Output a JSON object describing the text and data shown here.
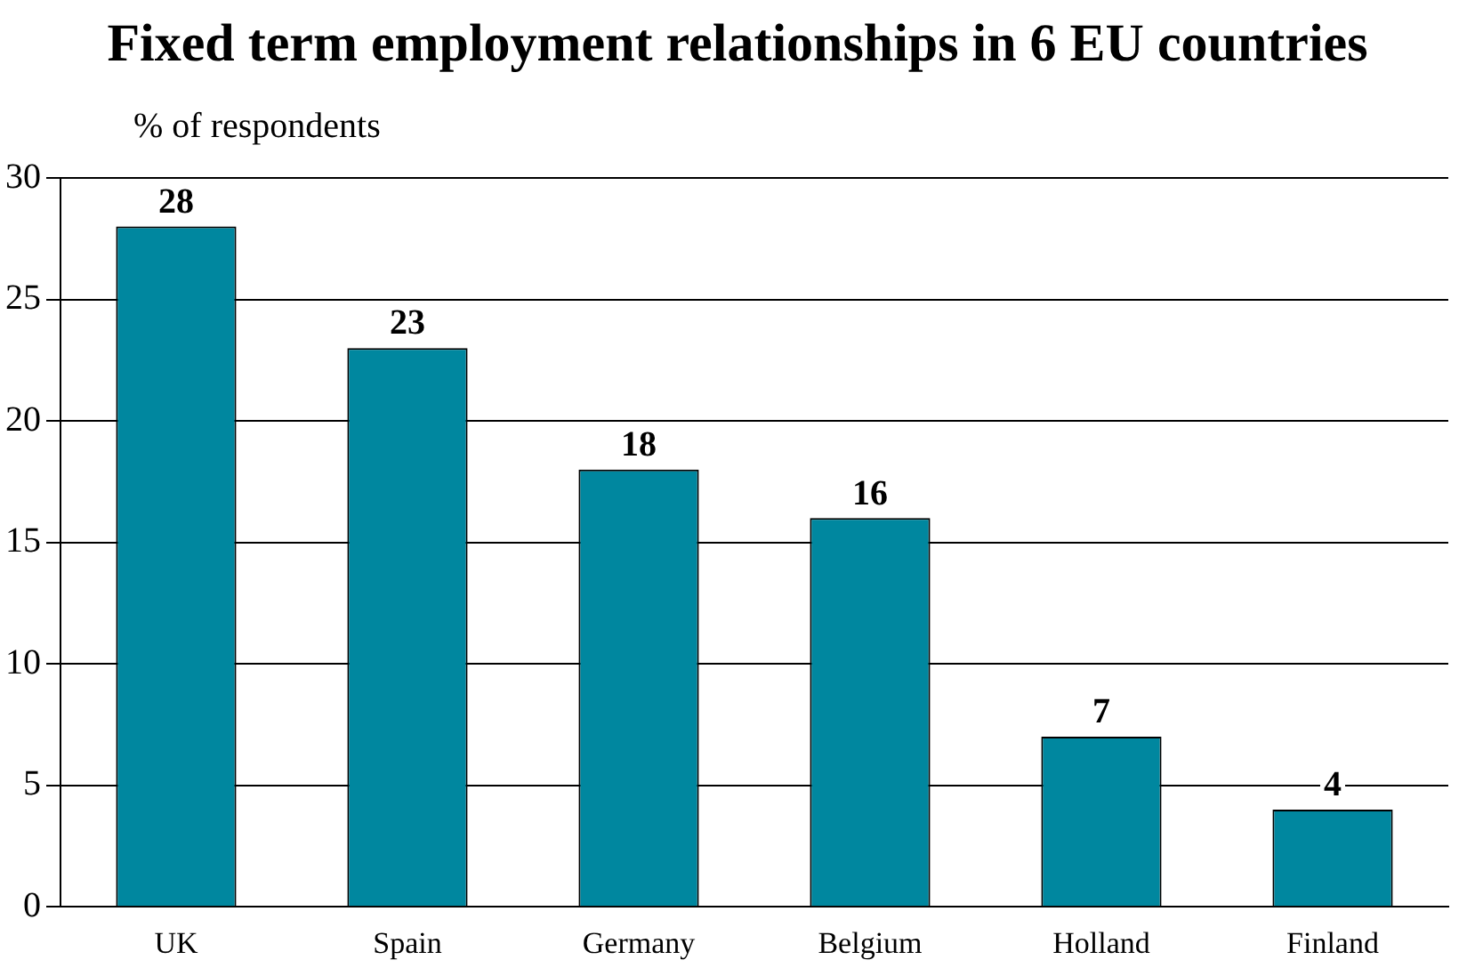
{
  "chart_data": {
    "type": "bar",
    "title": "Fixed term employment relationships in 6 EU countries",
    "ylabel": "% of respondents",
    "categories": [
      "UK",
      "Spain",
      "Germany",
      "Belgium",
      "Holland",
      "Finland"
    ],
    "values": [
      28,
      23,
      18,
      16,
      7,
      4
    ],
    "color": "#00879f",
    "ylim": [
      0,
      30
    ],
    "yticks": [
      0,
      5,
      10,
      15,
      20,
      25,
      30
    ],
    "grid": "y",
    "data_labels": true,
    "legend": false
  }
}
